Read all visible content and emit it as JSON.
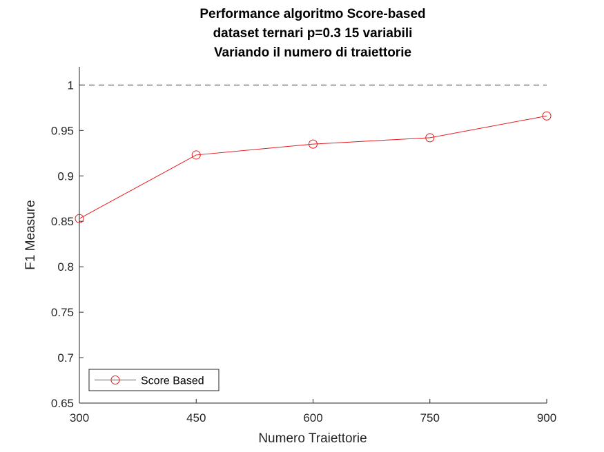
{
  "chart_data": {
    "type": "line",
    "title": [
      "Performance algoritmo Score-based",
      "dataset ternari p=0.3 15 variabili",
      "Variando il numero di traiettorie"
    ],
    "xlabel": "Numero Traiettorie",
    "ylabel": "F1 Measure",
    "x": [
      300,
      450,
      600,
      750,
      900
    ],
    "xticks": [
      "300",
      "450",
      "600",
      "750",
      "900"
    ],
    "xlim": [
      300,
      900
    ],
    "ylim": [
      0.65,
      1.02
    ],
    "yticks": [
      0.65,
      0.7,
      0.75,
      0.8,
      0.85,
      0.9,
      0.95,
      1
    ],
    "ytick_labels": [
      "0.65",
      "0.7",
      "0.75",
      "0.8",
      "0.85",
      "0.9",
      "0.95",
      "1"
    ],
    "series": [
      {
        "name": "Score Based",
        "values": [
          0.853,
          0.923,
          0.935,
          0.942,
          0.966
        ],
        "color": "#e8191c",
        "marker": "circle"
      }
    ],
    "reference_line": {
      "y": 1,
      "style": "dashed",
      "color": "#3a3a3a"
    },
    "grid": false,
    "legend_position": "bottom-left"
  }
}
